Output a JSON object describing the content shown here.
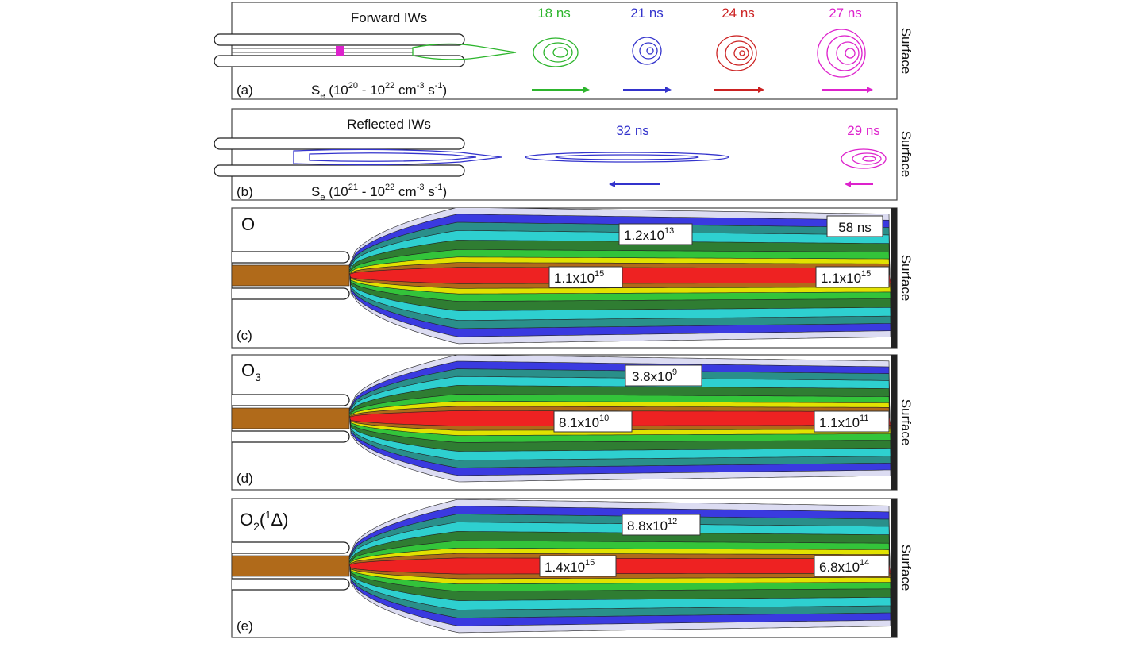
{
  "panels": [
    {
      "letter": "(a)",
      "title": "Forward IWs",
      "source_label": [
        "S",
        "e",
        " (10",
        "20",
        " - 10",
        "22",
        " cm",
        "-3",
        " s",
        "-1",
        ")"
      ],
      "times": [
        "18 ns",
        "21 ns",
        "24 ns",
        "27 ns"
      ],
      "side_label": "Surface"
    },
    {
      "letter": "(b)",
      "title": "Reflected IWs",
      "source_label": [
        "S",
        "e",
        " (10",
        "21",
        " - 10",
        "22",
        " cm",
        "-3",
        " s",
        "-1",
        ")"
      ],
      "times": [
        "32 ns",
        "29 ns"
      ],
      "side_label": "Surface"
    },
    {
      "letter": "(c)",
      "species": [
        "O"
      ],
      "time": "58 ns",
      "annotations": [
        [
          "1.2x10",
          "13"
        ],
        [
          "1.1x10",
          "15"
        ],
        [
          "1.1x10",
          "15"
        ]
      ],
      "side_label": "Surface"
    },
    {
      "letter": "(d)",
      "species": [
        "O",
        "3"
      ],
      "annotations": [
        [
          "3.8x10",
          "9"
        ],
        [
          "8.1x10",
          "10"
        ],
        [
          "1.1x10",
          "11"
        ]
      ],
      "side_label": "Surface"
    },
    {
      "letter": "(e)",
      "species": [
        "O",
        "2",
        "(",
        "1",
        "Δ)"
      ],
      "annotations": [
        [
          "8.8x10",
          "12"
        ],
        [
          "1.4x10",
          "15"
        ],
        [
          "6.8x10",
          "14"
        ]
      ],
      "side_label": "Surface"
    }
  ]
}
